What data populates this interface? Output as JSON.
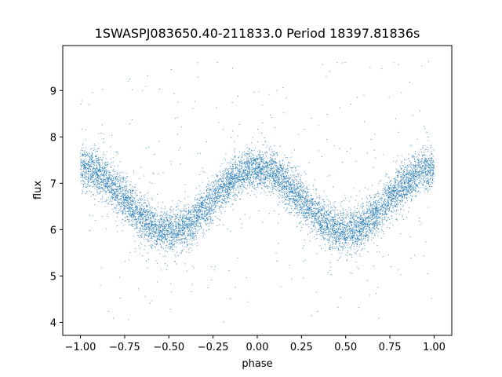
{
  "chart_data": {
    "type": "scatter",
    "title": "1SWASPJ083650.40-211833.0 Period 18397.81836s",
    "xlabel": "phase",
    "ylabel": "flux",
    "xlim": [
      -1.1,
      1.1
    ],
    "ylim": [
      3.72,
      9.97
    ],
    "x_ticks": [
      -1.0,
      -0.75,
      -0.5,
      -0.25,
      0.0,
      0.25,
      0.5,
      0.75,
      1.0
    ],
    "x_tick_labels": [
      "−1.00",
      "−0.75",
      "−0.50",
      "−0.25",
      "0.00",
      "0.25",
      "0.50",
      "0.75",
      "1.00"
    ],
    "y_ticks": [
      4,
      5,
      6,
      7,
      8,
      9
    ],
    "y_tick_labels": [
      "4",
      "5",
      "6",
      "7",
      "8",
      "9"
    ],
    "grid": false,
    "marker_color": "#1f77b4",
    "phase_range": [
      -1.0,
      1.0
    ],
    "series": [
      {
        "model": "sinusoid",
        "mean_flux": 6.65,
        "amplitude": 0.68,
        "peak_phase": 0.0,
        "cycles_per_phase": 1,
        "scatter_sigma": 0.22,
        "point_count": 9000,
        "outlier_count": 260,
        "outlier_flux_range": [
          4.0,
          9.7
        ]
      }
    ]
  }
}
